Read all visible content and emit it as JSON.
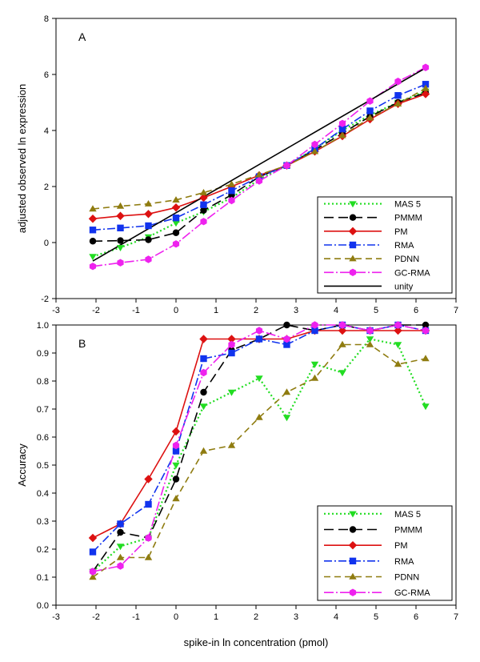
{
  "x_label": "spike-in ln concentration (pmol)",
  "chart_data": [
    {
      "type": "line",
      "panel_label": "A",
      "ylabel": "adjusted observed ln expression",
      "xlim": [
        -3,
        7
      ],
      "ylim": [
        -2,
        8
      ],
      "x_ticks": [
        "-3",
        "-2",
        "-1",
        "0",
        "1",
        "2",
        "3",
        "4",
        "5",
        "6",
        "7"
      ],
      "y_ticks": [
        "-2",
        "0",
        "2",
        "4",
        "6",
        "8"
      ],
      "legend_position": "bottom-right",
      "x": [
        -2.08,
        -1.39,
        -0.69,
        0,
        0.69,
        1.39,
        2.08,
        2.77,
        3.47,
        4.16,
        4.85,
        5.55,
        6.24
      ],
      "series": [
        {
          "name": "MAS 5",
          "color": "#22dd22",
          "dash": "2,3",
          "marker": "triangle-down",
          "values": [
            -0.5,
            -0.18,
            0.2,
            0.7,
            1.1,
            1.6,
            2.25,
            2.75,
            3.35,
            4.0,
            4.55,
            5.0,
            5.4
          ]
        },
        {
          "name": "PMMM",
          "color": "#000000",
          "dash": "12,6",
          "marker": "circle",
          "values": [
            0.05,
            0.07,
            0.1,
            0.35,
            1.15,
            1.7,
            2.35,
            2.75,
            3.3,
            3.9,
            4.5,
            5.0,
            5.35
          ]
        },
        {
          "name": "PM",
          "color": "#dd1111",
          "dash": "",
          "marker": "diamond",
          "values": [
            0.85,
            0.95,
            1.02,
            1.25,
            1.6,
            2.0,
            2.4,
            2.75,
            3.25,
            3.8,
            4.4,
            4.95,
            5.3
          ]
        },
        {
          "name": "RMA",
          "color": "#1133ee",
          "dash": "10,3,2,3",
          "marker": "square",
          "values": [
            0.45,
            0.52,
            0.6,
            0.88,
            1.35,
            1.85,
            2.35,
            2.75,
            3.35,
            4.05,
            4.7,
            5.25,
            5.65
          ]
        },
        {
          "name": "PDNN",
          "color": "#8f7c10",
          "dash": "8,5",
          "marker": "triangle-up",
          "values": [
            1.2,
            1.3,
            1.38,
            1.52,
            1.78,
            2.08,
            2.42,
            2.75,
            3.25,
            3.82,
            4.45,
            4.95,
            5.5
          ]
        },
        {
          "name": "GC-RMA",
          "color": "#ee22ee",
          "dash": "12,3,2,3",
          "marker": "hexagon",
          "values": [
            -0.85,
            -0.72,
            -0.6,
            -0.05,
            0.75,
            1.5,
            2.2,
            2.75,
            3.5,
            4.25,
            5.05,
            5.75,
            6.25
          ]
        },
        {
          "name": "unity",
          "color": "#000000",
          "dash": "",
          "marker": "none",
          "x": [
            -2.08,
            6.24
          ],
          "values": [
            -0.66,
            6.23
          ]
        }
      ]
    },
    {
      "type": "line",
      "panel_label": "B",
      "ylabel": "Accuracy",
      "xlim": [
        -3,
        7
      ],
      "ylim": [
        0.0,
        1.0
      ],
      "x_ticks": [
        "-3",
        "-2",
        "-1",
        "0",
        "1",
        "2",
        "3",
        "4",
        "5",
        "6",
        "7"
      ],
      "y_ticks": [
        "0.0",
        "0.1",
        "0.2",
        "0.3",
        "0.4",
        "0.5",
        "0.6",
        "0.7",
        "0.8",
        "0.9",
        "1.0"
      ],
      "legend_position": "bottom-right",
      "x": [
        -2.08,
        -1.39,
        -0.69,
        0,
        0.69,
        1.39,
        2.08,
        2.77,
        3.47,
        4.16,
        4.85,
        5.55,
        6.24
      ],
      "series": [
        {
          "name": "MAS 5",
          "color": "#22dd22",
          "dash": "2,3",
          "marker": "triangle-down",
          "values": [
            0.12,
            0.21,
            0.24,
            0.5,
            0.71,
            0.76,
            0.81,
            0.67,
            0.86,
            0.83,
            0.95,
            0.93,
            0.71
          ]
        },
        {
          "name": "PMMM",
          "color": "#000000",
          "dash": "12,6",
          "marker": "circle",
          "values": [
            0.12,
            0.26,
            0.24,
            0.45,
            0.76,
            0.91,
            0.95,
            1.0,
            0.98,
            1.0,
            0.98,
            1.0,
            1.0
          ]
        },
        {
          "name": "PM",
          "color": "#dd1111",
          "dash": "",
          "marker": "diamond",
          "values": [
            0.24,
            0.29,
            0.45,
            0.62,
            0.95,
            0.95,
            0.95,
            0.95,
            0.98,
            0.98,
            0.98,
            0.98,
            0.98
          ]
        },
        {
          "name": "RMA",
          "color": "#1133ee",
          "dash": "10,3,2,3",
          "marker": "square",
          "values": [
            0.19,
            0.29,
            0.36,
            0.55,
            0.88,
            0.9,
            0.95,
            0.93,
            0.98,
            1.0,
            0.98,
            1.0,
            0.98
          ]
        },
        {
          "name": "PDNN",
          "color": "#8f7c10",
          "dash": "8,5",
          "marker": "triangle-up",
          "values": [
            0.1,
            0.17,
            0.17,
            0.38,
            0.55,
            0.57,
            0.67,
            0.76,
            0.81,
            0.93,
            0.93,
            0.86,
            0.88
          ]
        },
        {
          "name": "GC-RMA",
          "color": "#ee22ee",
          "dash": "12,3,2,3",
          "marker": "hexagon",
          "values": [
            0.12,
            0.14,
            0.24,
            0.57,
            0.83,
            0.93,
            0.98,
            0.95,
            1.0,
            1.0,
            0.98,
            1.0,
            0.98
          ]
        }
      ]
    }
  ]
}
